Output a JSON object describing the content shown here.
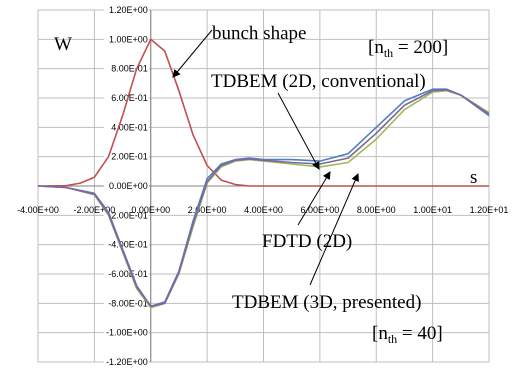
{
  "chart_data": {
    "type": "line",
    "xlim": [
      -4,
      12
    ],
    "ylim": [
      -1.2,
      1.2
    ],
    "x_ticks": [
      "-4.00E+00",
      "-2.00E+00",
      "0.00E+00",
      "2.00E+00",
      "4.00E+00",
      "6.00E+00",
      "8.00E+00",
      "1.00E+01",
      "1.20E+01"
    ],
    "y_ticks": [
      "1.20E+00",
      "1.00E+00",
      "8.00E-01",
      "6.00E-01",
      "4.00E-01",
      "2.00E-01",
      "0.00E+00",
      "-2.00E-01",
      "-4.00E-01",
      "-6.00E-01",
      "-8.00E-01",
      "-1.00E+00",
      "-1.20E+00"
    ],
    "grid": true,
    "ylabel": "W",
    "xlabel": "s",
    "series": [
      {
        "color": "#c0504d",
        "x": [
          -4,
          -3,
          -2.5,
          -2,
          -1.5,
          -1,
          -0.5,
          0,
          0.5,
          1,
          1.5,
          2,
          2.5,
          3,
          3.5,
          4,
          12
        ],
        "y": [
          0,
          0.002,
          0.02,
          0.06,
          0.2,
          0.48,
          0.8,
          1.0,
          0.92,
          0.65,
          0.35,
          0.14,
          0.04,
          0.01,
          0.0,
          0,
          0
        ]
      },
      {
        "color": "#9bbb59",
        "x": [
          -4,
          -3,
          -2,
          -1.5,
          -1,
          -0.5,
          0,
          0.5,
          1,
          1.5,
          2,
          2.5,
          3,
          3.5,
          4,
          5,
          6,
          7,
          8,
          9,
          10,
          10.5,
          11,
          12
        ],
        "y": [
          0,
          -0.01,
          -0.06,
          -0.2,
          -0.45,
          -0.7,
          -0.83,
          -0.8,
          -0.6,
          -0.28,
          0.02,
          0.13,
          0.17,
          0.18,
          0.17,
          0.15,
          0.13,
          0.16,
          0.32,
          0.52,
          0.64,
          0.65,
          0.62,
          0.5
        ]
      },
      {
        "color": "#4f81bd",
        "x": [
          -4,
          -3,
          -2,
          -1.5,
          -1,
          -0.5,
          0,
          0.5,
          1,
          1.5,
          2,
          2.5,
          3,
          3.5,
          4,
          5,
          6,
          7,
          8,
          9,
          10,
          10.5,
          11,
          12
        ],
        "y": [
          0,
          -0.01,
          -0.05,
          -0.18,
          -0.43,
          -0.68,
          -0.82,
          -0.79,
          -0.58,
          -0.24,
          0.05,
          0.15,
          0.18,
          0.19,
          0.18,
          0.18,
          0.17,
          0.22,
          0.4,
          0.58,
          0.66,
          0.66,
          0.62,
          0.48
        ]
      },
      {
        "color": "#8064a2",
        "x": [
          -4,
          -3,
          -2,
          -1.5,
          -1,
          -0.5,
          0,
          0.5,
          1,
          1.5,
          2,
          2.5,
          3,
          3.5,
          4,
          5,
          6,
          7,
          8,
          9,
          10,
          10.5,
          11,
          12
        ],
        "y": [
          0,
          -0.01,
          -0.055,
          -0.19,
          -0.44,
          -0.69,
          -0.82,
          -0.8,
          -0.59,
          -0.26,
          0.03,
          0.14,
          0.175,
          0.185,
          0.175,
          0.16,
          0.15,
          0.19,
          0.36,
          0.55,
          0.65,
          0.655,
          0.62,
          0.49
        ]
      }
    ],
    "annotations": {
      "bunch": "bunch shape",
      "nth200_open": "[n",
      "nth200_sub": "th",
      "nth200_close": " = 200]",
      "tdbem2d": "TDBEM (2D, conventional)",
      "fdtd": "FDTD (2D)",
      "tdbem3d": "TDBEM (3D, presented)",
      "nth40_open": "[n",
      "nth40_sub": "th",
      "nth40_close": " = 40]"
    }
  }
}
